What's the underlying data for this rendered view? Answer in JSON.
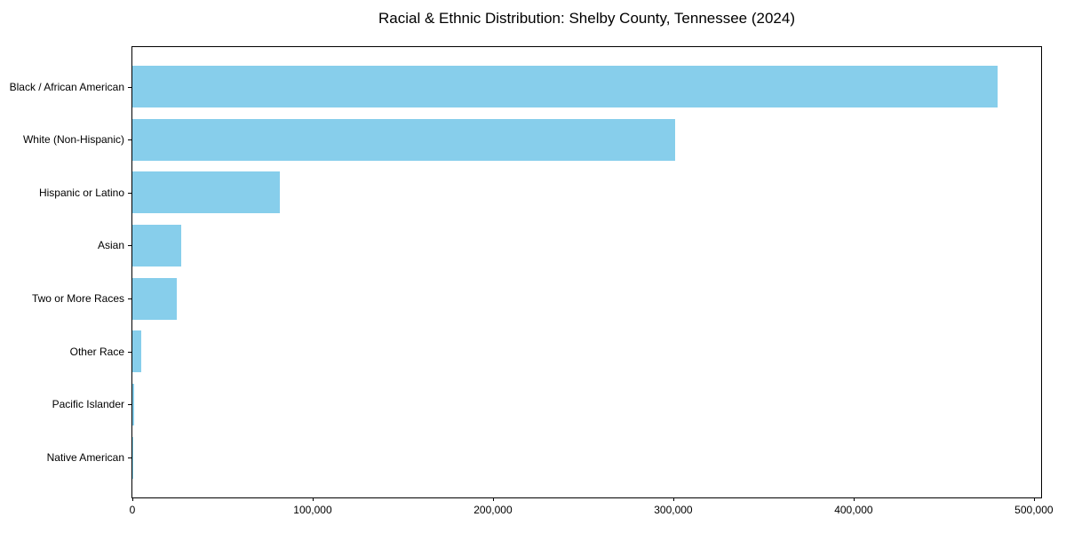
{
  "chart_data": {
    "type": "bar",
    "orientation": "horizontal",
    "title": "Racial & Ethnic Distribution: Shelby County, Tennessee (2024)",
    "categories": [
      "Black / African American",
      "White (Non-Hispanic)",
      "Hispanic or Latino",
      "Asian",
      "Two or More Races",
      "Other Race",
      "Pacific Islander",
      "Native American"
    ],
    "values": [
      480000,
      301000,
      82000,
      27000,
      24500,
      5000,
      1000,
      500
    ],
    "xlabel": "",
    "ylabel": "",
    "xlim": [
      0,
      504000
    ],
    "x_ticks": [
      0,
      100000,
      200000,
      300000,
      400000,
      500000
    ],
    "x_tick_labels": [
      "0",
      "100,000",
      "200,000",
      "300,000",
      "400,000",
      "500,000"
    ],
    "bar_color": "#87CEEB",
    "axis_color": "#000000",
    "background_color": "#ffffff",
    "grid": false,
    "legend": "none",
    "frame": "full-box"
  }
}
